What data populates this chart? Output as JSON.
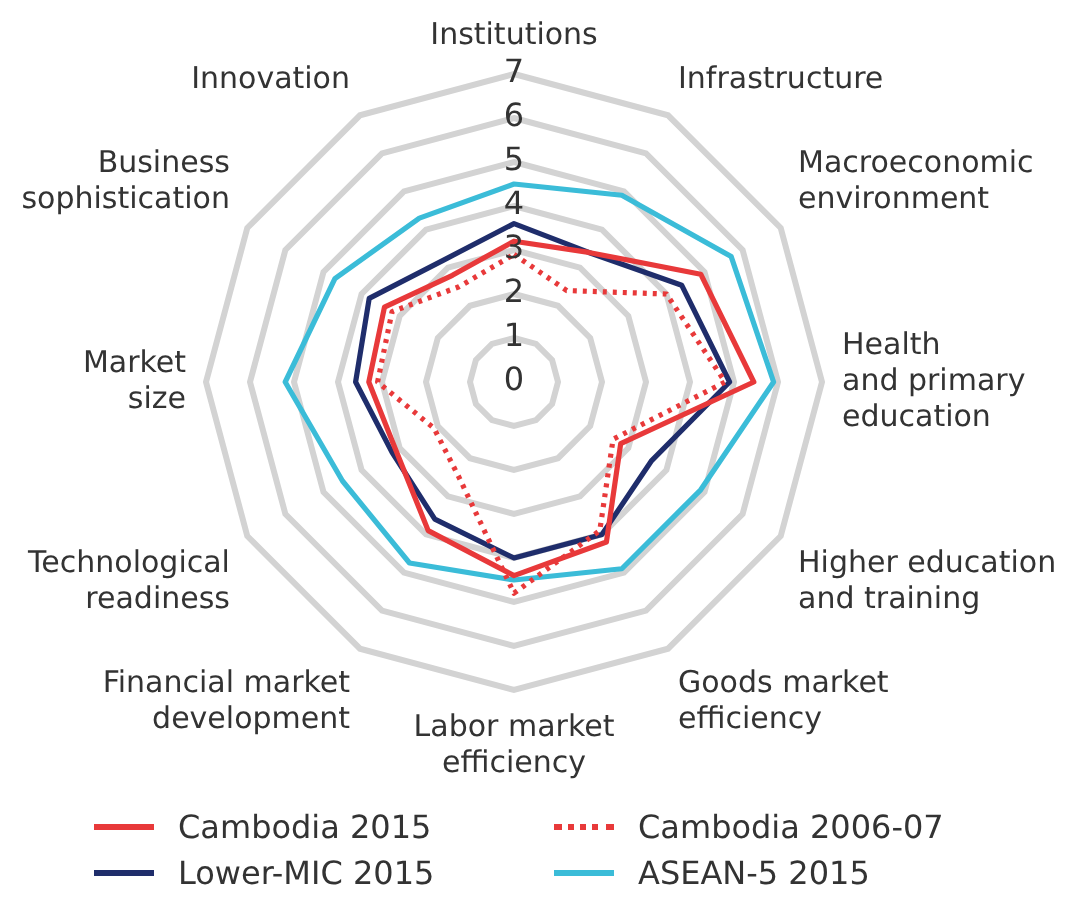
{
  "chart_data": {
    "type": "radar",
    "categories": [
      "Institutions",
      "Infrastructure",
      "Macroeconomic\nenvironment",
      "Health\nand primary\neducation",
      "Higher education\nand training",
      "Goods market\nefficiency",
      "Labor market\nefficiency",
      "Financial market\ndevelopment",
      "Technological\nreadiness",
      "Market\nsize",
      "Business\nsophistication",
      "Innovation"
    ],
    "series": [
      {
        "name": "Cambodia 2015",
        "color": "#e8393a",
        "line_style": "solid",
        "values": [
          3.2,
          3.4,
          4.9,
          5.45,
          2.8,
          4.2,
          4.4,
          3.9,
          3.1,
          3.3,
          3.4,
          2.8
        ]
      },
      {
        "name": "Cambodia 2006-07",
        "color": "#e8393a",
        "line_style": "dotted",
        "values": [
          2.9,
          2.4,
          4.0,
          4.8,
          2.6,
          3.9,
          4.8,
          2.5,
          2.1,
          3.1,
          3.2,
          2.5
        ]
      },
      {
        "name": "Lower-MIC 2015",
        "color": "#1f2d6b",
        "line_style": "solid",
        "values": [
          3.6,
          3.4,
          4.4,
          4.9,
          3.6,
          4.0,
          4.0,
          3.6,
          3.2,
          3.6,
          3.8,
          3.2
        ]
      },
      {
        "name": "ASEAN-5 2015",
        "color": "#3bbcd8",
        "line_style": "solid",
        "values": [
          4.5,
          4.9,
          5.7,
          5.9,
          4.9,
          4.9,
          4.5,
          4.75,
          4.5,
          5.2,
          4.7,
          4.3
        ]
      }
    ],
    "ylim": [
      0,
      7
    ],
    "yticks": [
      0,
      1,
      2,
      3,
      4,
      5,
      6,
      7
    ],
    "grid": true,
    "legend": "bottom",
    "marker": "none"
  }
}
